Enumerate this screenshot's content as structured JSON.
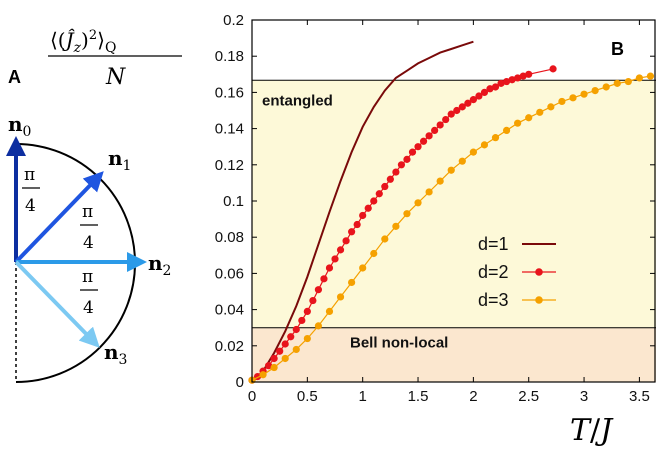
{
  "figure": {
    "ylabel_text": "⟨(Ĵz)²⟩Q / N",
    "xlabel_text": "T/J"
  },
  "panel_a": {
    "label": "A",
    "vectors": [
      {
        "label": "n0",
        "angle_deg": 90,
        "color": "#0d2ea0"
      },
      {
        "label": "n1",
        "angle_deg": 45,
        "color": "#1f55e0"
      },
      {
        "label": "n2",
        "angle_deg": 0,
        "color": "#2b9ae8"
      },
      {
        "label": "n3",
        "angle_deg": -45,
        "color": "#7cc9f2"
      }
    ],
    "angle_labels": [
      "π/4",
      "π/4",
      "π/4"
    ]
  },
  "chart_data": {
    "type": "line",
    "panel_label": "B",
    "xlabel": "T/J",
    "ylabel": "⟨(Ĵz)²⟩Q / N",
    "xlim": [
      0,
      3.65
    ],
    "ylim": [
      0,
      0.2
    ],
    "xticks": [
      "0",
      "0.5",
      "1",
      "1.5",
      "2",
      "2.5",
      "3",
      "3.5"
    ],
    "yticks": [
      "0",
      "0.02",
      "0.04",
      "0.06",
      "0.08",
      "0.1",
      "0.12",
      "0.14",
      "0.16",
      "0.18",
      "0.2"
    ],
    "thresholds": {
      "entangled": 0.1667,
      "bell": 0.03
    },
    "regions": [
      {
        "label": "entangled",
        "from": 0.03,
        "to": 0.1667,
        "color": "#fdf9d8"
      },
      {
        "label": "Bell non-local",
        "from": 0,
        "to": 0.03,
        "color": "#fbe7cf"
      }
    ],
    "legend_position": "center-right",
    "series": [
      {
        "name": "d=1",
        "color": "#7a0a0a",
        "marker": false,
        "x": [
          0,
          0.1,
          0.2,
          0.3,
          0.4,
          0.5,
          0.6,
          0.7,
          0.8,
          0.9,
          1.0,
          1.1,
          1.2,
          1.3,
          1.4,
          1.5,
          1.6,
          1.7,
          1.8,
          1.9,
          2.0
        ],
        "y": [
          0,
          0.006,
          0.016,
          0.028,
          0.042,
          0.058,
          0.076,
          0.094,
          0.111,
          0.127,
          0.141,
          0.152,
          0.161,
          0.168,
          0.172,
          0.176,
          0.179,
          0.182,
          0.184,
          0.186,
          0.188
        ]
      },
      {
        "name": "d=2",
        "color": "#e8141c",
        "marker": true,
        "x": [
          0,
          0.05,
          0.1,
          0.15,
          0.2,
          0.25,
          0.3,
          0.35,
          0.4,
          0.45,
          0.5,
          0.55,
          0.6,
          0.65,
          0.7,
          0.75,
          0.8,
          0.85,
          0.9,
          0.95,
          1.0,
          1.05,
          1.1,
          1.15,
          1.2,
          1.25,
          1.3,
          1.35,
          1.4,
          1.45,
          1.5,
          1.55,
          1.6,
          1.65,
          1.7,
          1.75,
          1.8,
          1.85,
          1.9,
          1.95,
          2.0,
          2.05,
          2.1,
          2.15,
          2.2,
          2.25,
          2.3,
          2.35,
          2.4,
          2.45,
          2.5,
          2.72
        ],
        "y": [
          0.001,
          0.003,
          0.006,
          0.009,
          0.013,
          0.017,
          0.021,
          0.025,
          0.029,
          0.034,
          0.039,
          0.045,
          0.051,
          0.057,
          0.063,
          0.068,
          0.073,
          0.078,
          0.083,
          0.087,
          0.092,
          0.096,
          0.1,
          0.104,
          0.108,
          0.112,
          0.116,
          0.12,
          0.123,
          0.127,
          0.13,
          0.133,
          0.136,
          0.139,
          0.142,
          0.145,
          0.148,
          0.15,
          0.152,
          0.154,
          0.156,
          0.158,
          0.16,
          0.162,
          0.163,
          0.165,
          0.166,
          0.167,
          0.168,
          0.169,
          0.17,
          0.173
        ]
      },
      {
        "name": "d=3",
        "color": "#f5a100",
        "marker": true,
        "x": [
          0,
          0.1,
          0.2,
          0.3,
          0.4,
          0.5,
          0.6,
          0.7,
          0.8,
          0.9,
          1.0,
          1.1,
          1.2,
          1.3,
          1.4,
          1.5,
          1.6,
          1.7,
          1.8,
          1.9,
          2.0,
          2.1,
          2.2,
          2.3,
          2.4,
          2.5,
          2.6,
          2.7,
          2.8,
          2.9,
          3.0,
          3.1,
          3.2,
          3.3,
          3.4,
          3.5,
          3.6
        ],
        "y": [
          0.001,
          0.004,
          0.008,
          0.013,
          0.018,
          0.024,
          0.031,
          0.039,
          0.047,
          0.055,
          0.063,
          0.071,
          0.079,
          0.086,
          0.093,
          0.099,
          0.105,
          0.111,
          0.117,
          0.122,
          0.127,
          0.131,
          0.135,
          0.139,
          0.143,
          0.146,
          0.149,
          0.152,
          0.155,
          0.157,
          0.159,
          0.161,
          0.163,
          0.165,
          0.166,
          0.168,
          0.169
        ]
      }
    ]
  }
}
